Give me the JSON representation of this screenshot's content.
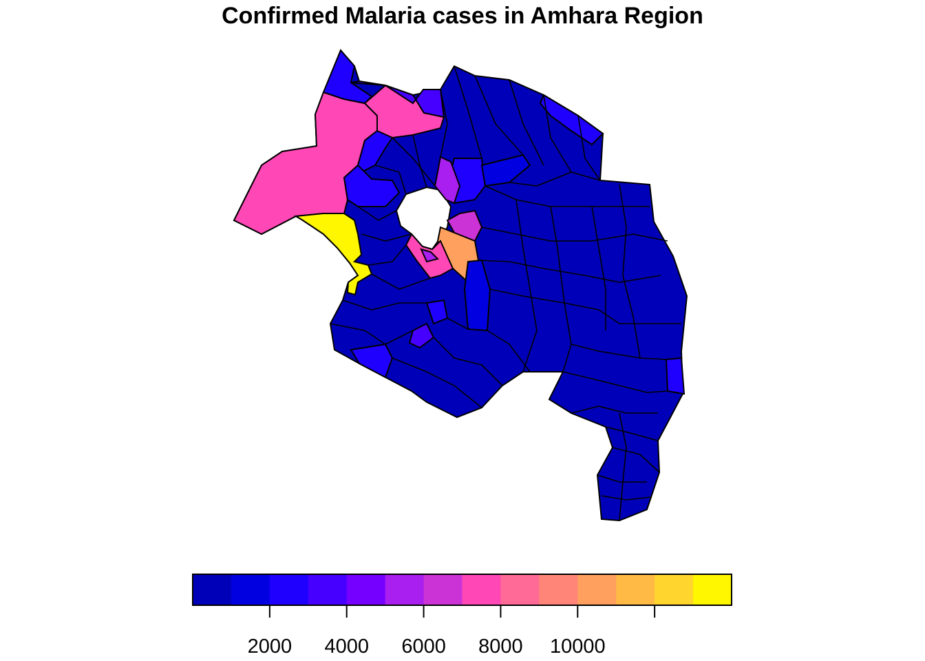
{
  "title": "Confirmed Malaria cases in Amhara Region",
  "legend": {
    "ticks": [
      2000,
      4000,
      6000,
      8000,
      10000,
      12000
    ],
    "tick_labels": [
      "2000",
      "4000",
      "6000",
      "8000",
      "10000",
      ""
    ],
    "range": [
      0,
      14000
    ],
    "bins": [
      {
        "from": 0,
        "to": 1000,
        "color": "#0000B9"
      },
      {
        "from": 1000,
        "to": 2000,
        "color": "#0000E0"
      },
      {
        "from": 2000,
        "to": 3000,
        "color": "#1F00FF"
      },
      {
        "from": 3000,
        "to": 4000,
        "color": "#4600FF"
      },
      {
        "from": 4000,
        "to": 5000,
        "color": "#7600FF"
      },
      {
        "from": 5000,
        "to": 6000,
        "color": "#A91FEF"
      },
      {
        "from": 6000,
        "to": 7000,
        "color": "#CC33D6"
      },
      {
        "from": 7000,
        "to": 8000,
        "color": "#FF48B6"
      },
      {
        "from": 8000,
        "to": 9000,
        "color": "#FF6A96"
      },
      {
        "from": 9000,
        "to": 10000,
        "color": "#FF8578"
      },
      {
        "from": 10000,
        "to": 11000,
        "color": "#FFA05E"
      },
      {
        "from": 11000,
        "to": 12000,
        "color": "#FFBA45"
      },
      {
        "from": 12000,
        "to": 13000,
        "color": "#FFD52E"
      },
      {
        "from": 13000,
        "to": 14000,
        "color": "#FFF700"
      }
    ]
  },
  "colors": {
    "base": "#0000B9",
    "low": "#0000E0",
    "mid_low": "#1F00FF",
    "purple": "#A91FEF",
    "magenta": "#CC33D6",
    "pink": "#FF48B6",
    "orange": "#FFA05E",
    "yellow": "#FFF700",
    "outline": "#000000"
  }
}
